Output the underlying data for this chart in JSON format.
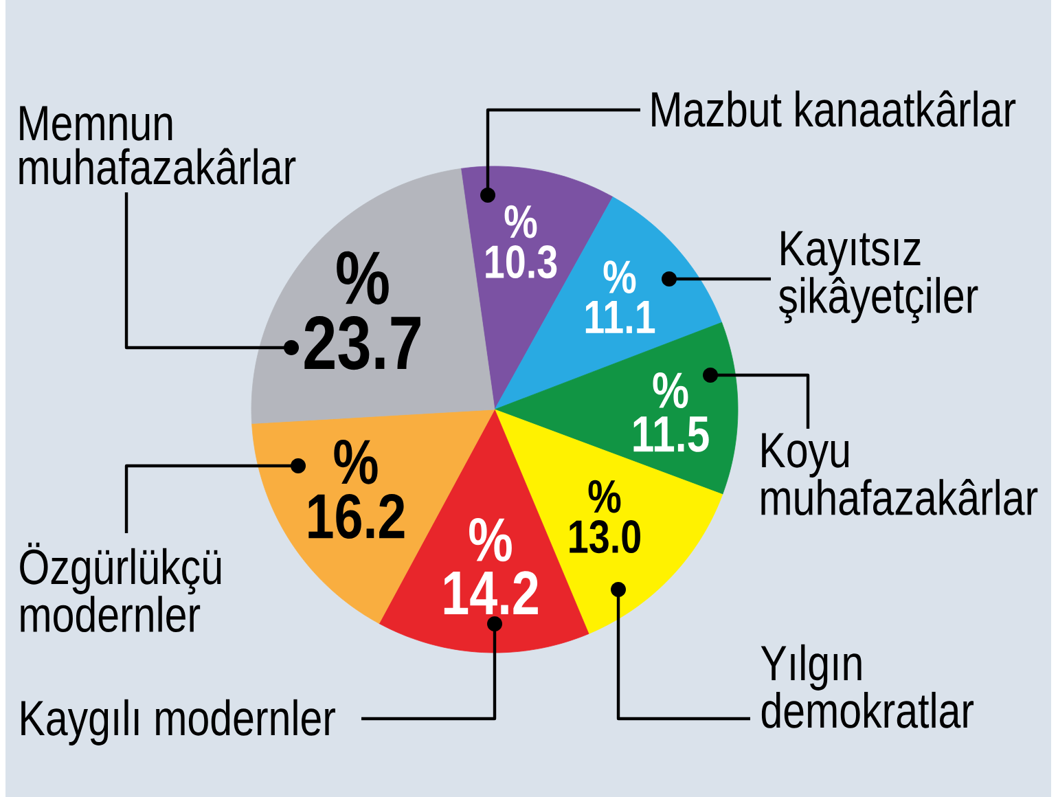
{
  "chart_data": {
    "type": "pie",
    "categories": [
      "Mazbut kanaatkârlar",
      "Kayıtsız şikâyetçiler",
      "Koyu muhafazakârlar",
      "Yılgın demokratlar",
      "Kaygılı modernler",
      "Özgürlükçü modernler",
      "Memnun muhafazakârlar"
    ],
    "values": [
      10.3,
      11.1,
      11.5,
      13.0,
      14.2,
      16.2,
      23.7
    ],
    "colors": [
      "#7b52a3",
      "#29aae2",
      "#119544",
      "#fff200",
      "#e8262b",
      "#f9ae40",
      "#b4b6bd"
    ],
    "value_labels": [
      "% 10.3",
      "% 11.1",
      "% 11.5",
      "% 13.0",
      "% 14.2",
      "% 16.2",
      "% 23.7"
    ]
  }
}
